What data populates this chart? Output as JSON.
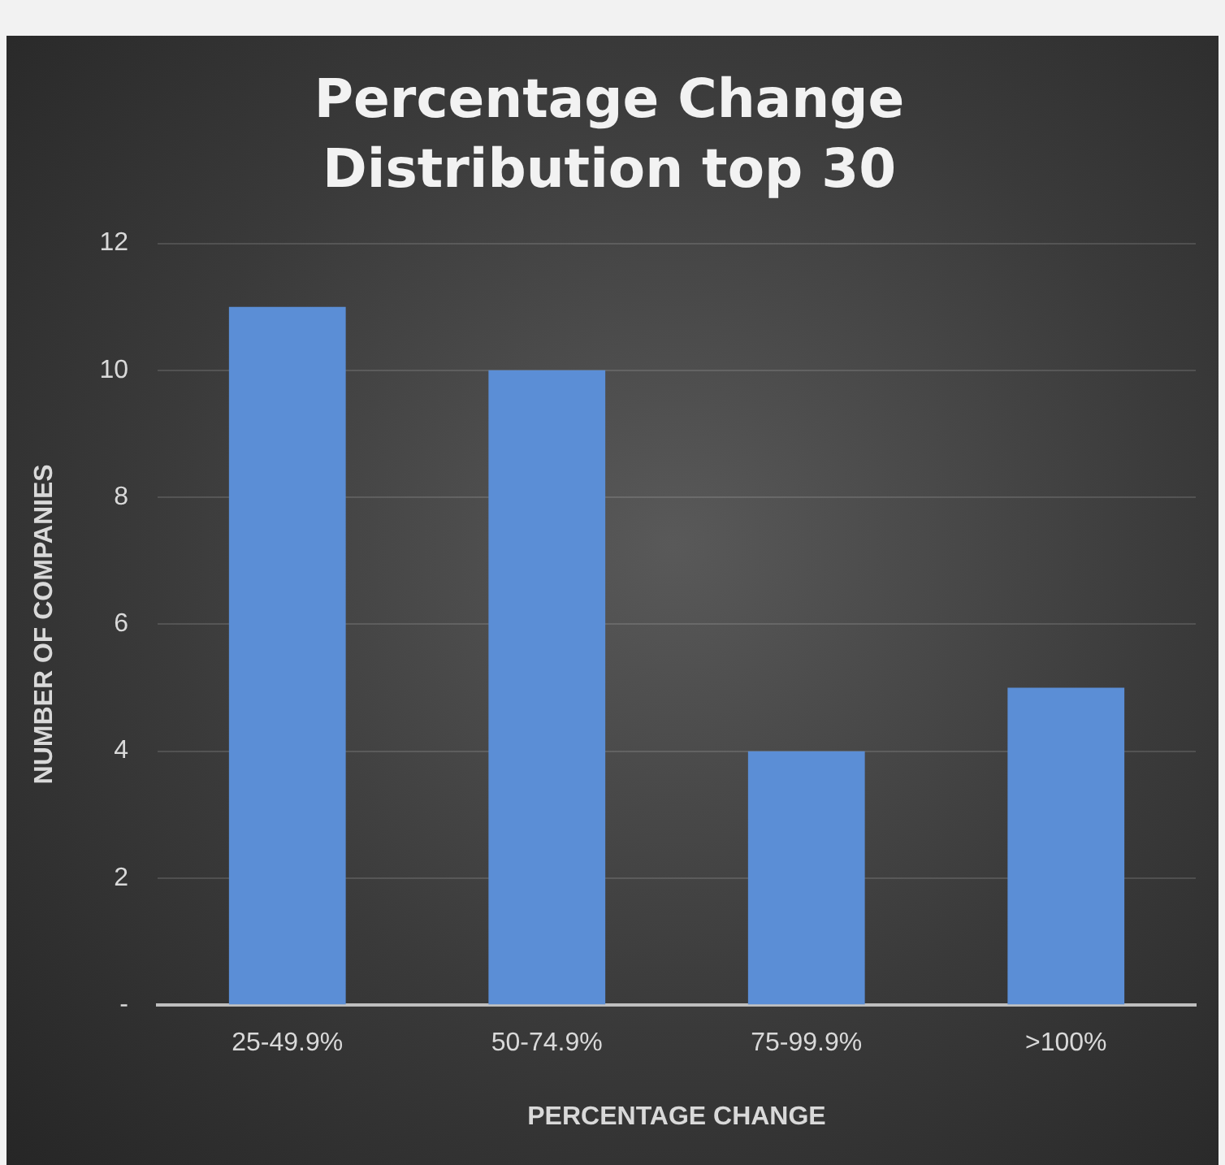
{
  "chart_data": {
    "type": "bar",
    "title": "Percentage Change Distribution top 30",
    "xlabel": "PERCENTAGE CHANGE",
    "ylabel": "NUMBER OF COMPANIES",
    "categories": [
      "25-49.9%",
      "50-74.9%",
      "75-99.9%",
      ">100%"
    ],
    "values": [
      11,
      10,
      4,
      5
    ],
    "color": "#5b8ed6",
    "ylim": [
      0,
      12
    ],
    "yticks": [
      {
        "value": 0,
        "label": "-"
      },
      2,
      4,
      6,
      8,
      10,
      12
    ],
    "grid": "y",
    "legend": false
  }
}
